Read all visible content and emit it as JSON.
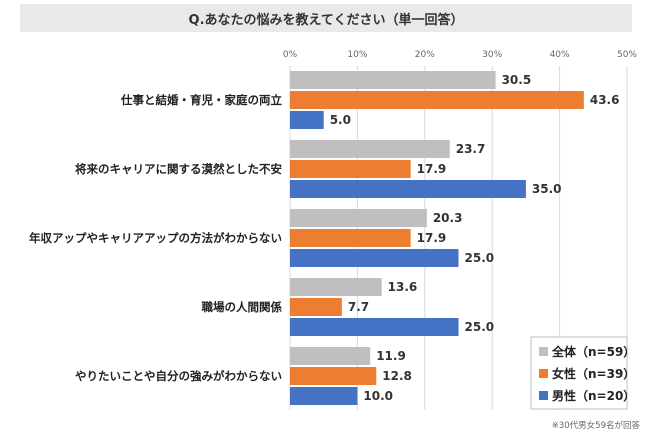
{
  "title": "Q.あなたの悩みを教えてください（単一回答）",
  "footnote": "※30代男女59名が回答",
  "chart_data": {
    "type": "bar",
    "orientation": "horizontal",
    "xlim": [
      0,
      50
    ],
    "ticks": [
      0,
      10,
      20,
      30,
      40,
      50
    ],
    "tick_labels": [
      "0%",
      "10%",
      "20%",
      "30%",
      "40%",
      "50%"
    ],
    "grid": true,
    "legend_position": "bottom-right",
    "categories": [
      "仕事と結婚・育児・家庭の両立",
      "将来のキャリアに関する漠然とした不安",
      "年収アップやキャリアアップの方法がわからない",
      "職場の人間関係",
      "やりたいことや自分の強みがわからない"
    ],
    "series": [
      {
        "name": "全体（n=59）",
        "color": "#bfbfbf",
        "values": [
          30.5,
          23.7,
          20.3,
          13.6,
          11.9
        ],
        "labels": [
          "30.5",
          "23.7",
          "20.3",
          "13.6",
          "11.9"
        ]
      },
      {
        "name": "女性（n=39）",
        "color": "#ed7d31",
        "values": [
          43.6,
          17.9,
          17.9,
          7.7,
          12.8
        ],
        "labels": [
          "43.6",
          "17.9",
          "17.9",
          "7.7",
          "12.8"
        ]
      },
      {
        "name": "男性（n=20）",
        "color": "#4472c4",
        "values": [
          5.0,
          35.0,
          25.0,
          25.0,
          10.0
        ],
        "labels": [
          "5.0",
          "35.0",
          "25.0",
          "25.0",
          "10.0"
        ]
      }
    ]
  }
}
